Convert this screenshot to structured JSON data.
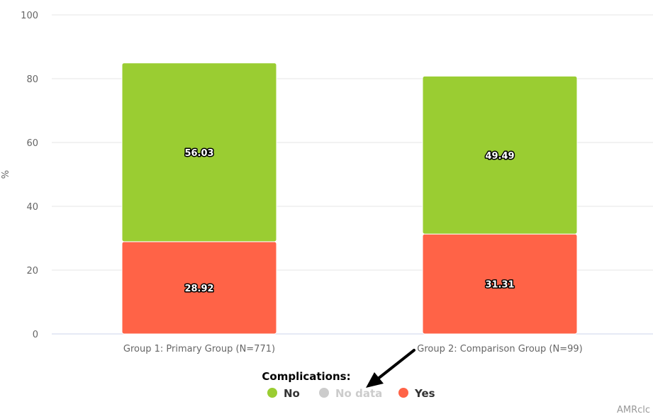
{
  "chart_data": {
    "type": "bar",
    "stacked": true,
    "ylabel": "%",
    "ylim": [
      0,
      100
    ],
    "yticks": [
      0,
      20,
      40,
      60,
      80,
      100
    ],
    "categories": [
      "Group 1: Primary Group (N=771)",
      "Group 2: Comparison Group (N=99)"
    ],
    "series": [
      {
        "name": "Yes",
        "values": [
          28.92,
          31.31
        ],
        "color": "#ff6347"
      },
      {
        "name": "No data",
        "values": [
          0,
          0
        ],
        "color": "#cccccc",
        "hidden": true
      },
      {
        "name": "No",
        "values": [
          56.03,
          49.49
        ],
        "color": "#9acd32"
      }
    ],
    "grid": true,
    "legend": {
      "title": "Complications:",
      "placement": "bottom-center",
      "items": [
        {
          "name": "No",
          "color": "#9acd32",
          "hidden": false
        },
        {
          "name": "No data",
          "color": "#cccccc",
          "hidden": true
        },
        {
          "name": "Yes",
          "color": "#ff6347",
          "hidden": false
        }
      ]
    },
    "annotation": "arrow-pointing-to-no-data-legend-item",
    "credits": "AMRclc"
  }
}
